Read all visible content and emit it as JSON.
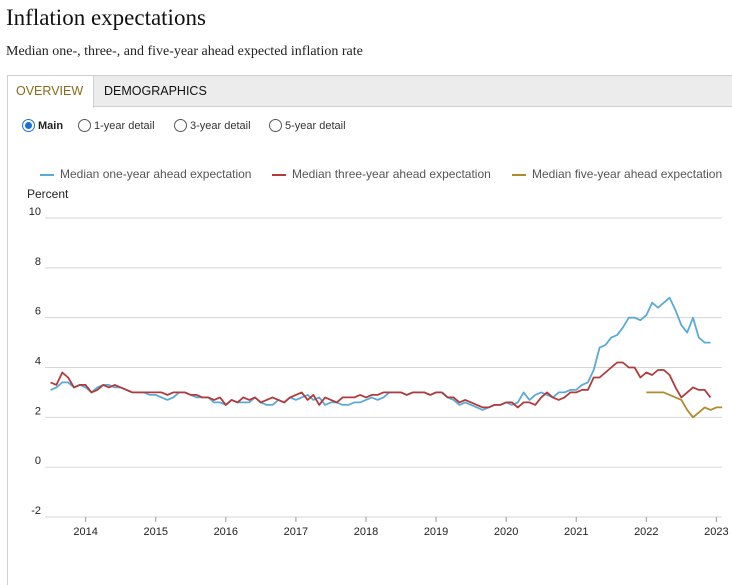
{
  "page": {
    "title": "Inflation expectations",
    "subtitle": "Median one-, three-, and five-year ahead expected inflation rate"
  },
  "tabs": [
    {
      "label": "OVERVIEW",
      "active": true
    },
    {
      "label": "DEMOGRAPHICS",
      "active": false
    }
  ],
  "view_options": [
    {
      "label": "Main",
      "selected": true
    },
    {
      "label": "1-year detail",
      "selected": false
    },
    {
      "label": "3-year detail",
      "selected": false
    },
    {
      "label": "5-year detail",
      "selected": false
    }
  ],
  "chart_data": {
    "type": "line",
    "title": "",
    "ylabel": "Percent",
    "xlabel": "",
    "ylim": [
      -2,
      10
    ],
    "yticks": [
      -2,
      0,
      2,
      4,
      6,
      8,
      10
    ],
    "xlim": [
      2013.42,
      2023.08
    ],
    "xticks": [
      2014,
      2015,
      2016,
      2017,
      2018,
      2019,
      2020,
      2021,
      2022,
      2023
    ],
    "grid": true,
    "legend_position": "top",
    "series": [
      {
        "name": "Median one-year ahead expectation",
        "color": "#5aaad8",
        "start": 2013.5,
        "step": 0.08333,
        "values": [
          3.1,
          3.2,
          3.4,
          3.4,
          3.2,
          3.3,
          3.2,
          3.0,
          3.2,
          3.3,
          3.3,
          3.2,
          3.2,
          3.1,
          3.0,
          3.0,
          3.0,
          2.9,
          2.9,
          2.8,
          2.7,
          2.8,
          3.0,
          3.0,
          2.9,
          2.8,
          2.8,
          2.8,
          2.6,
          2.6,
          2.5,
          2.7,
          2.6,
          2.6,
          2.6,
          2.8,
          2.6,
          2.5,
          2.5,
          2.7,
          2.6,
          2.8,
          2.7,
          2.8,
          2.9,
          2.7,
          2.8,
          2.5,
          2.6,
          2.6,
          2.5,
          2.5,
          2.6,
          2.6,
          2.7,
          2.8,
          2.7,
          2.8,
          3.0,
          3.0,
          3.0,
          2.9,
          3.0,
          3.0,
          3.0,
          2.9,
          3.0,
          3.0,
          2.8,
          2.7,
          2.5,
          2.6,
          2.5,
          2.4,
          2.3,
          2.4,
          2.5,
          2.5,
          2.6,
          2.5,
          2.6,
          3.0,
          2.7,
          2.9,
          3.0,
          2.9,
          2.8,
          3.0,
          3.0,
          3.1,
          3.1,
          3.3,
          3.4,
          3.9,
          4.8,
          4.9,
          5.2,
          5.3,
          5.6,
          6.0,
          6.0,
          5.9,
          6.1,
          6.6,
          6.4,
          6.6,
          6.8,
          6.3,
          5.7,
          5.4,
          6.0,
          5.2,
          5.0,
          5.0
        ]
      },
      {
        "name": "Median three-year ahead expectation",
        "color": "#b33a3a",
        "start": 2013.5,
        "step": 0.08333,
        "values": [
          3.4,
          3.3,
          3.8,
          3.6,
          3.2,
          3.3,
          3.3,
          3.0,
          3.1,
          3.3,
          3.2,
          3.3,
          3.2,
          3.1,
          3.0,
          3.0,
          3.0,
          3.0,
          3.0,
          3.0,
          2.9,
          3.0,
          3.0,
          3.0,
          2.9,
          2.9,
          2.8,
          2.8,
          2.7,
          2.8,
          2.5,
          2.7,
          2.6,
          2.8,
          2.7,
          2.8,
          2.6,
          2.7,
          2.8,
          2.7,
          2.6,
          2.8,
          2.9,
          3.0,
          2.7,
          2.9,
          2.5,
          2.8,
          2.7,
          2.6,
          2.8,
          2.8,
          2.8,
          2.9,
          2.8,
          2.9,
          2.9,
          3.0,
          3.0,
          3.0,
          3.0,
          2.9,
          3.0,
          3.0,
          3.0,
          2.9,
          3.0,
          3.0,
          2.8,
          2.8,
          2.6,
          2.7,
          2.6,
          2.5,
          2.4,
          2.4,
          2.5,
          2.5,
          2.6,
          2.6,
          2.4,
          2.6,
          2.6,
          2.5,
          2.8,
          3.0,
          2.8,
          2.7,
          2.8,
          3.0,
          3.0,
          3.1,
          3.1,
          3.6,
          3.6,
          3.8,
          4.0,
          4.2,
          4.2,
          4.0,
          4.0,
          3.6,
          3.8,
          3.7,
          3.9,
          3.9,
          3.7,
          3.2,
          2.8,
          3.0,
          3.2,
          3.1,
          3.1,
          2.8
        ]
      },
      {
        "name": "Median five-year ahead expectation",
        "color": "#b08a2e",
        "start": 2022.0,
        "step": 0.08333,
        "values": [
          3.0,
          3.0,
          3.0,
          3.0,
          2.9,
          2.8,
          2.7,
          2.3,
          2.0,
          2.2,
          2.4,
          2.3,
          2.4,
          2.4
        ]
      }
    ]
  }
}
